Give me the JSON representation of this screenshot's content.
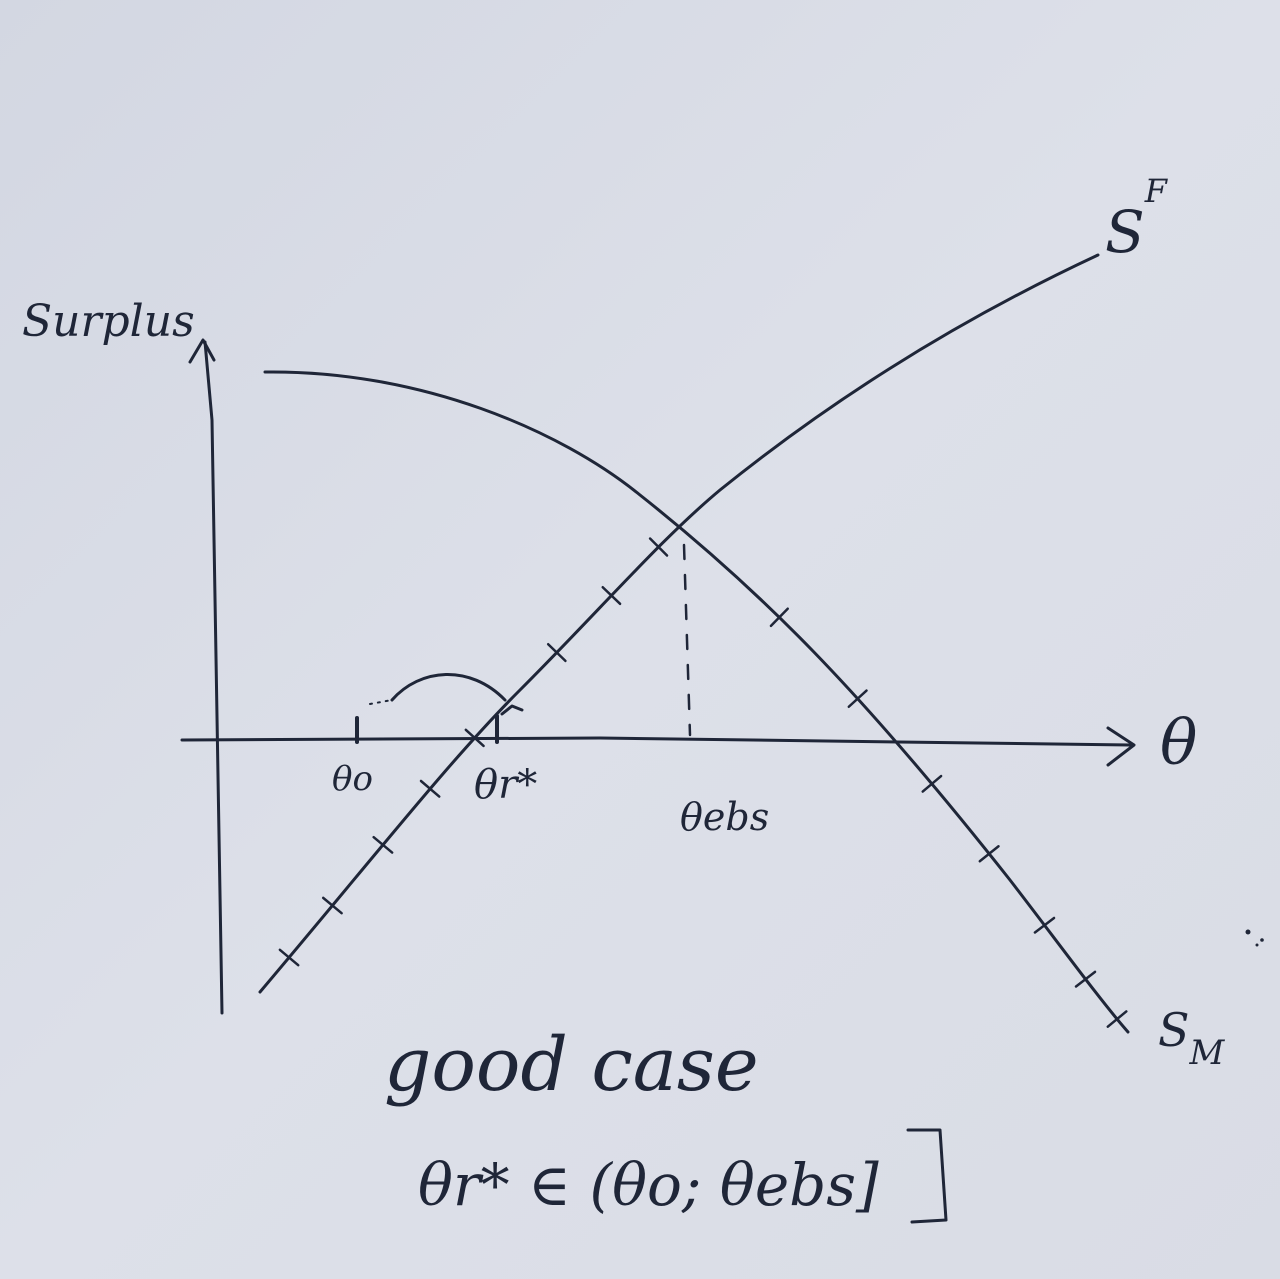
{
  "axes": {
    "y_label": "Surplus",
    "x_label": "θ"
  },
  "curves": {
    "sf_label": "S",
    "sf_superscript": "F",
    "sm_label": "S",
    "sm_subscript": "M"
  },
  "ticks": {
    "theta0": "θo",
    "theta_r_star": "θr*",
    "theta_ebs": "θebs"
  },
  "caption": {
    "line1": "good case",
    "line2": "θr* ∈ (θo; θebs]"
  },
  "colors": {
    "paper": "#d8dce6",
    "ink": "#1f2638"
  }
}
